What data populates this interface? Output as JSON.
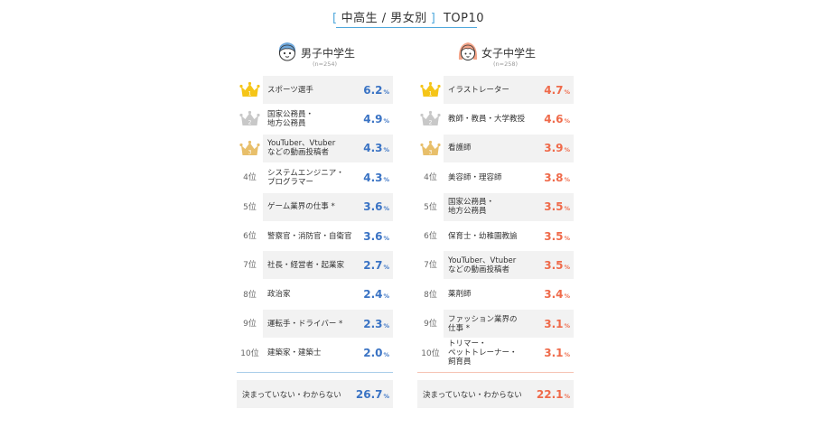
{
  "title": {
    "open_bracket": "[",
    "text": "中高生 / 男女別",
    "close_bracket": "]",
    "suffix": "TOP10"
  },
  "colors": {
    "boys_accent": "#3a73c4",
    "girls_accent": "#ef6a4a",
    "gold_crown": "#f5c518",
    "silver_crown": "#c8c8c8",
    "bronze_crown": "#e8bf6a"
  },
  "chart_data": [
    {
      "type": "table",
      "group": "男子中学生",
      "n": "(n=254)",
      "icon": "boy-face-icon",
      "rows": [
        {
          "rank": "1",
          "rank_icon": "gold-crown-icon",
          "job": "スポーツ選手",
          "value": "6.2"
        },
        {
          "rank": "2",
          "rank_icon": "silver-crown-icon",
          "job": "国家公務員・\n地方公務員",
          "value": "4.9"
        },
        {
          "rank": "3",
          "rank_icon": "bronze-crown-icon",
          "job": "YouTuber、Vtuber\nなどの動画投稿者",
          "value": "4.3"
        },
        {
          "rank": "4位",
          "job": "システムエンジニア・\nプログラマー",
          "value": "4.3"
        },
        {
          "rank": "5位",
          "job": "ゲーム業界の仕事 *",
          "value": "3.6"
        },
        {
          "rank": "6位",
          "job": "警察官・消防官・自衛官",
          "value": "3.6"
        },
        {
          "rank": "7位",
          "job": "社長・経営者・起業家",
          "value": "2.7"
        },
        {
          "rank": "8位",
          "job": "政治家",
          "value": "2.4"
        },
        {
          "rank": "9位",
          "job": "運転手・ドライバー *",
          "value": "2.3"
        },
        {
          "rank": "10位",
          "job": "建築家・建築士",
          "value": "2.0"
        }
      ],
      "undecided": {
        "label": "決まっていない・わからない",
        "value": "26.7"
      },
      "unit": "%"
    },
    {
      "type": "table",
      "group": "女子中学生",
      "n": "(n=258)",
      "icon": "girl-face-icon",
      "rows": [
        {
          "rank": "1",
          "rank_icon": "gold-crown-icon",
          "job": "イラストレーター",
          "value": "4.7"
        },
        {
          "rank": "2",
          "rank_icon": "silver-crown-icon",
          "job": "教師・教員・大学教授",
          "value": "4.6"
        },
        {
          "rank": "3",
          "rank_icon": "bronze-crown-icon",
          "job": "看護師",
          "value": "3.9"
        },
        {
          "rank": "4位",
          "job": "美容師・理容師",
          "value": "3.8"
        },
        {
          "rank": "5位",
          "job": "国家公務員・\n地方公務員",
          "value": "3.5"
        },
        {
          "rank": "6位",
          "job": "保育士・幼稚園教諭",
          "value": "3.5"
        },
        {
          "rank": "7位",
          "job": "YouTuber、Vtuber\nなどの動画投稿者",
          "value": "3.5"
        },
        {
          "rank": "8位",
          "job": "薬剤師",
          "value": "3.4"
        },
        {
          "rank": "9位",
          "job": "ファッション業界の\n仕事 *",
          "value": "3.1"
        },
        {
          "rank": "10位",
          "job": "トリマー・\nペットトレーナー・\n飼育員",
          "value": "3.1"
        }
      ],
      "undecided": {
        "label": "決まっていない・わからない",
        "value": "22.1"
      },
      "unit": "%"
    }
  ]
}
